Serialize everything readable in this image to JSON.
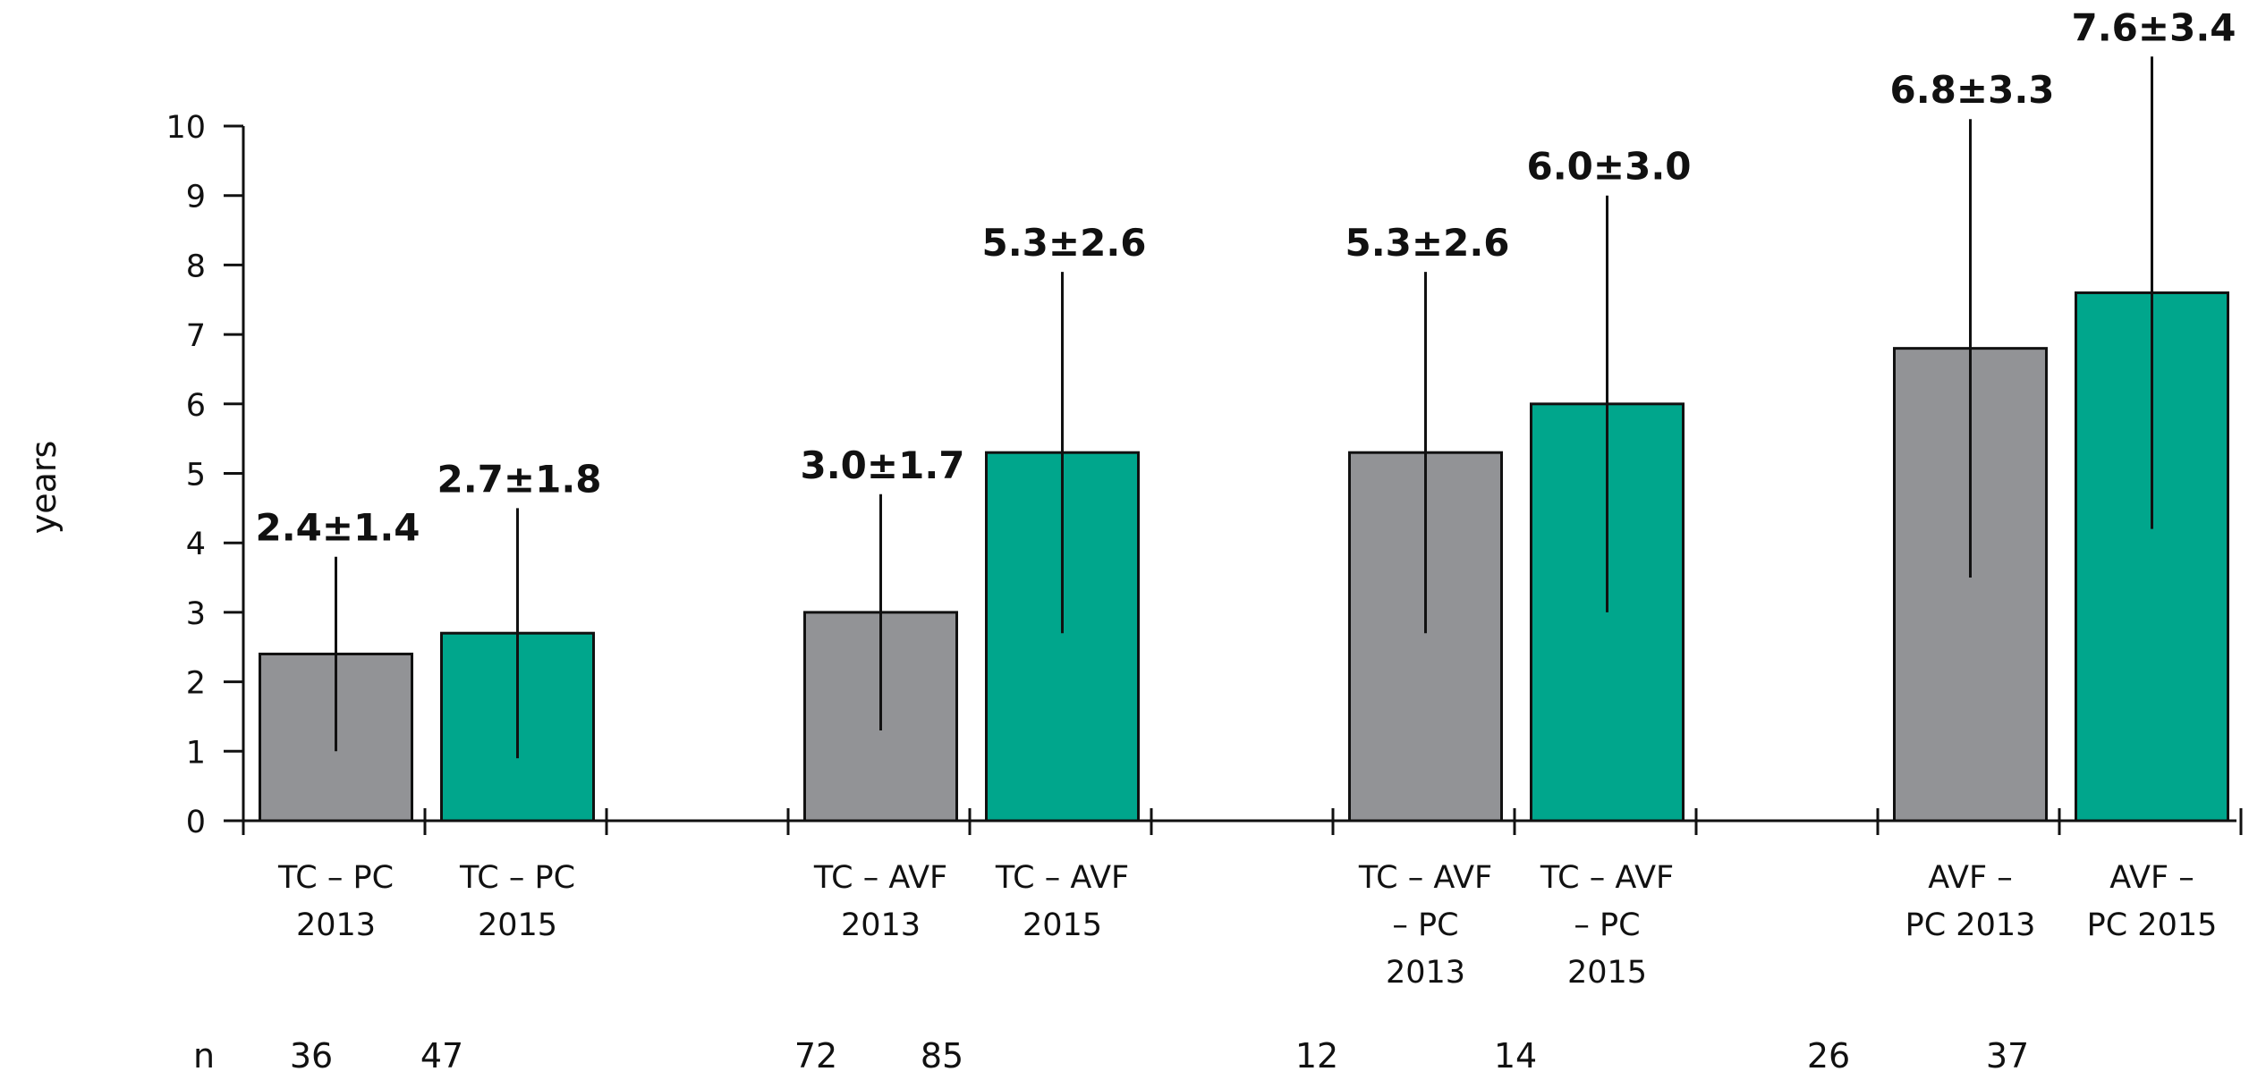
{
  "chart_data": {
    "type": "bar",
    "ylabel": "years",
    "ylim": [
      0,
      10
    ],
    "yticks": [
      0,
      1,
      2,
      3,
      4,
      5,
      6,
      7,
      8,
      9,
      10
    ],
    "colors": {
      "year_2013": "#929396",
      "year_2015": "#00a68c"
    },
    "bars": [
      {
        "category": [
          "TC – PC",
          "2013"
        ],
        "value": 2.4,
        "sd": 1.4,
        "label": "2.4±1.4",
        "year": "2013"
      },
      {
        "category": [
          "TC – PC",
          "2015"
        ],
        "value": 2.7,
        "sd": 1.8,
        "label": "2.7±1.8",
        "year": "2015"
      },
      {
        "category": [
          "TC – AVF",
          "2013"
        ],
        "value": 3.0,
        "sd": 1.7,
        "label": "3.0±1.7",
        "year": "2013"
      },
      {
        "category": [
          "TC – AVF",
          "2015"
        ],
        "value": 5.3,
        "sd": 2.6,
        "label": "5.3±2.6",
        "year": "2015"
      },
      {
        "category": [
          "TC – AVF",
          "– PC",
          "2013"
        ],
        "value": 5.3,
        "sd": 2.6,
        "label": "5.3±2.6",
        "year": "2013"
      },
      {
        "category": [
          "TC – AVF",
          "– PC",
          "2015"
        ],
        "value": 6.0,
        "sd": 3.0,
        "label": "6.0±3.0",
        "year": "2015"
      },
      {
        "category": [
          "AVF –",
          "PC 2013"
        ],
        "value": 6.8,
        "sd": 3.3,
        "label": "6.8±3.3",
        "year": "2013"
      },
      {
        "category": [
          "AVF –",
          "PC 2015"
        ],
        "value": 7.6,
        "sd": 3.4,
        "label": "7.6±3.4",
        "year": "2015"
      }
    ],
    "n_row": {
      "label": "n",
      "values": [
        "36",
        "47",
        "72",
        "85",
        "12",
        "14",
        "26",
        "37"
      ]
    }
  }
}
